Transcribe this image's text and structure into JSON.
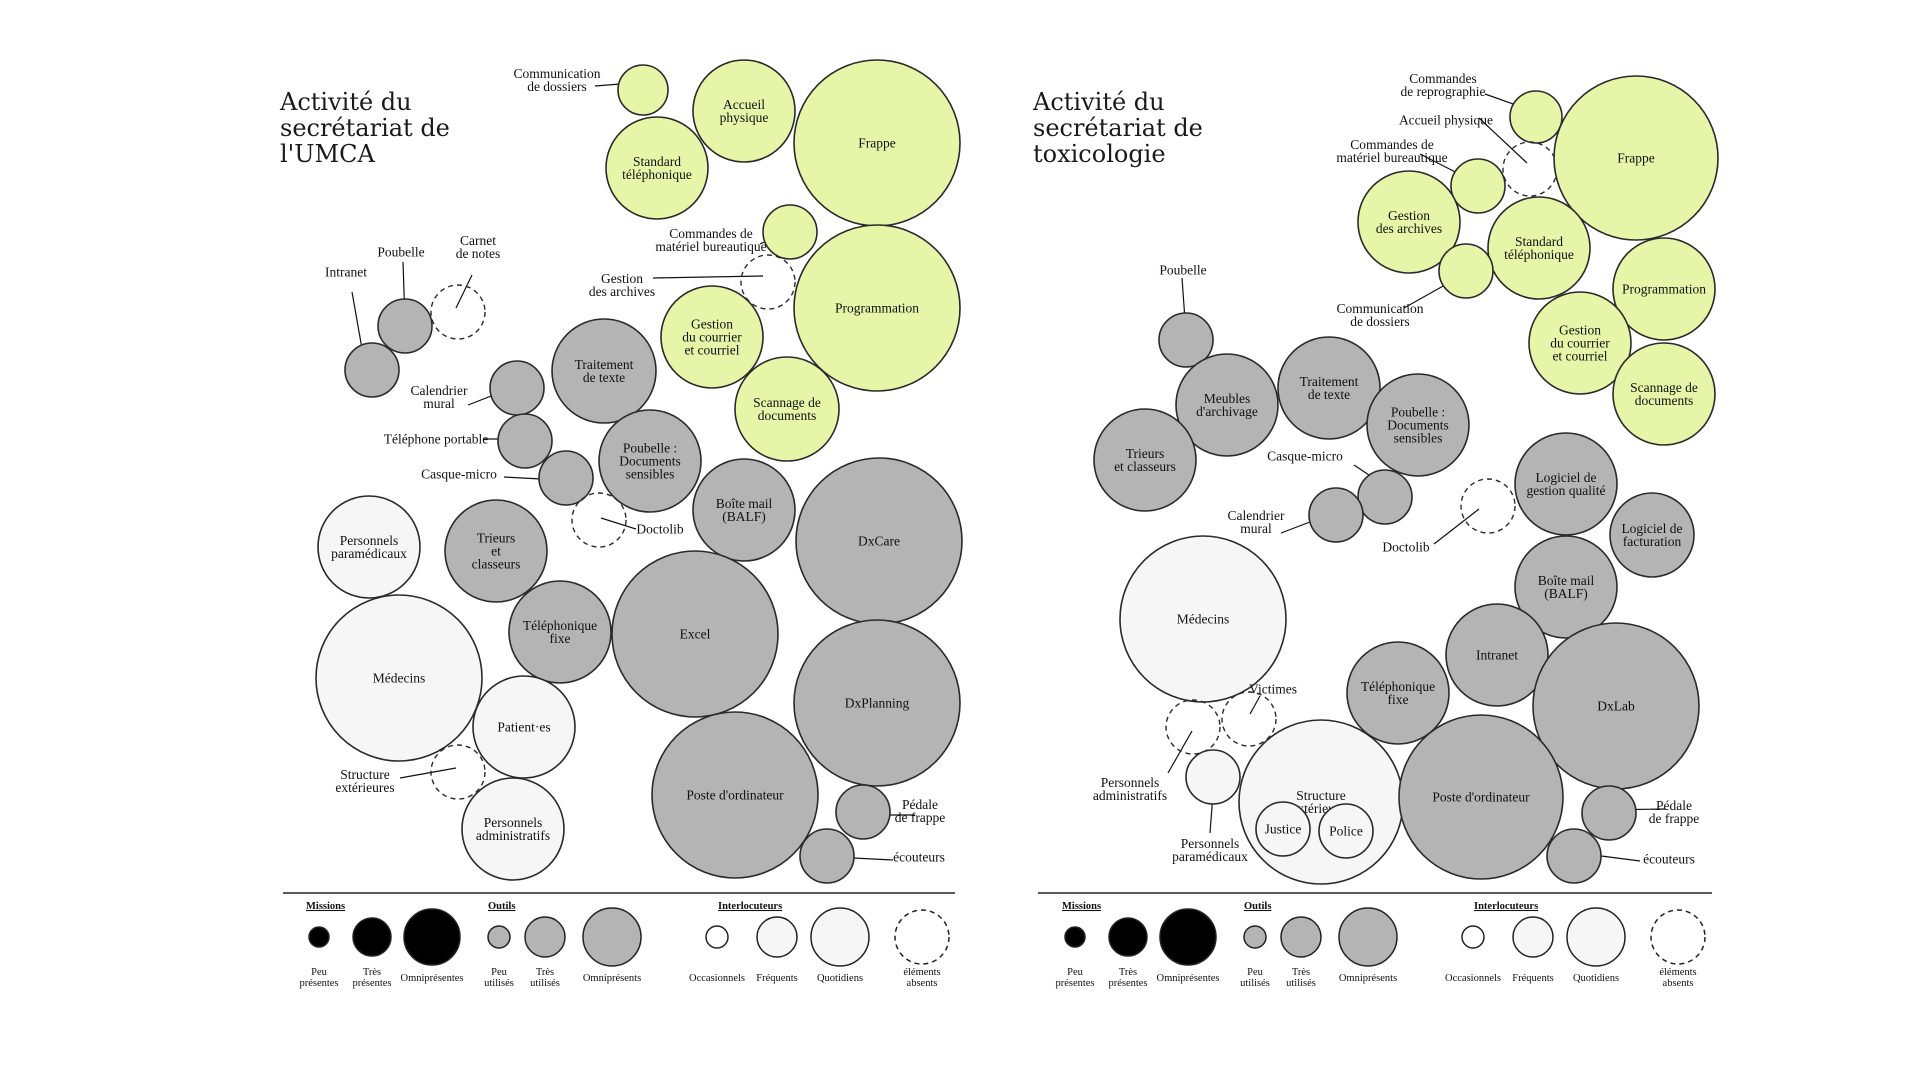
{
  "colors": {
    "mission": "#e6f5a8",
    "outil": "#b4b4b4",
    "interlocuteur": "#e8e8e8",
    "interlocuteur_light": "#f6f6f6",
    "stroke": "#2a2a2a"
  },
  "panels": [
    {
      "title": [
        "Activité du",
        "secrétariat de",
        "l'UMCA"
      ],
      "nodes": [
        {
          "label": "Communication\nde dossiers",
          "kind": "mission"
        },
        {
          "label": "Accueil\nphysique",
          "kind": "mission"
        },
        {
          "label": "Frappe",
          "kind": "mission"
        },
        {
          "label": "Standard\ntéléphonique",
          "kind": "mission"
        },
        {
          "label": "Commandes de\nmatériel bureautique",
          "kind": "mission"
        },
        {
          "label": "Gestion\ndes archives",
          "kind": "absent"
        },
        {
          "label": "Programmation",
          "kind": "mission"
        },
        {
          "label": "Gestion\ndu courrier\net courriel",
          "kind": "mission"
        },
        {
          "label": "Scannage de\ndocuments",
          "kind": "mission"
        },
        {
          "label": "Intranet",
          "kind": "outil"
        },
        {
          "label": "Poubelle",
          "kind": "outil"
        },
        {
          "label": "Carnet\nde notes",
          "kind": "absent"
        },
        {
          "label": "Traitement\nde texte",
          "kind": "outil"
        },
        {
          "label": "Calendrier\nmural",
          "kind": "outil"
        },
        {
          "label": "Téléphone portable",
          "kind": "outil"
        },
        {
          "label": "Casque-micro",
          "kind": "outil"
        },
        {
          "label": "Poubelle :\nDocuments\nsensibles",
          "kind": "outil"
        },
        {
          "label": "Doctolib",
          "kind": "absent"
        },
        {
          "label": "Boîte mail\n(BALF)",
          "kind": "outil"
        },
        {
          "label": "DxCare",
          "kind": "outil"
        },
        {
          "label": "Personnels\nparamédicaux",
          "kind": "interlocuteur"
        },
        {
          "label": "Trieurs\net\nclasseurs",
          "kind": "outil"
        },
        {
          "label": "Téléphonique\nfixe",
          "kind": "outil"
        },
        {
          "label": "Excel",
          "kind": "outil"
        },
        {
          "label": "Médecins",
          "kind": "interlocuteur"
        },
        {
          "label": "Patient·es",
          "kind": "interlocuteur"
        },
        {
          "label": "DxPlanning",
          "kind": "outil"
        },
        {
          "label": "Structure\nextérieures",
          "kind": "absent"
        },
        {
          "label": "Poste d'ordinateur",
          "kind": "outil"
        },
        {
          "label": "Personnels\nadministratifs",
          "kind": "interlocuteur"
        },
        {
          "label": "Pédale\nde frappe",
          "kind": "outil"
        },
        {
          "label": "écouteurs",
          "kind": "outil"
        }
      ]
    },
    {
      "title": [
        "Activité du",
        "secrétariat de",
        "toxicologie"
      ],
      "nodes": [
        {
          "label": "Commandes\nde reprographie",
          "kind": "mission"
        },
        {
          "label": "Accueil physique",
          "kind": "absent"
        },
        {
          "label": "Frappe",
          "kind": "mission"
        },
        {
          "label": "Commandes de\nmatériel bureautique",
          "kind": "mission"
        },
        {
          "label": "Gestion\ndes archives",
          "kind": "mission"
        },
        {
          "label": "Standard\ntéléphonique",
          "kind": "mission"
        },
        {
          "label": "Communication\nde dossiers",
          "kind": "mission"
        },
        {
          "label": "Programmation",
          "kind": "mission"
        },
        {
          "label": "Gestion\ndu courrier\net courriel",
          "kind": "mission"
        },
        {
          "label": "Scannage de\ndocuments",
          "kind": "mission"
        },
        {
          "label": "Poubelle",
          "kind": "outil"
        },
        {
          "label": "Meubles\nd'archivage",
          "kind": "outil"
        },
        {
          "label": "Traitement\nde texte",
          "kind": "outil"
        },
        {
          "label": "Trieurs\net classeurs",
          "kind": "outil"
        },
        {
          "label": "Poubelle :\nDocuments\nsensibles",
          "kind": "outil"
        },
        {
          "label": "Casque-micro",
          "kind": "outil"
        },
        {
          "label": "Calendrier\nmural",
          "kind": "outil"
        },
        {
          "label": "Doctolib",
          "kind": "absent"
        },
        {
          "label": "Logiciel de\ngestion qualité",
          "kind": "outil"
        },
        {
          "label": "Logiciel de\nfacturation",
          "kind": "outil"
        },
        {
          "label": "Médecins",
          "kind": "interlocuteur"
        },
        {
          "label": "Boîte mail\n(BALF)",
          "kind": "outil"
        },
        {
          "label": "Intranet",
          "kind": "outil"
        },
        {
          "label": "Victimes",
          "kind": "absent"
        },
        {
          "label": "Téléphonique\nfixe",
          "kind": "outil"
        },
        {
          "label": "DxLab",
          "kind": "outil"
        },
        {
          "label": "Personnels\nadministratifs",
          "kind": "absent"
        },
        {
          "label": "Structure\nextérieures",
          "kind": "interlocuteur"
        },
        {
          "label": "Justice",
          "kind": "interlocuteur"
        },
        {
          "label": "Police",
          "kind": "interlocuteur"
        },
        {
          "label": "Poste d'ordinateur",
          "kind": "outil"
        },
        {
          "label": "Personnels\nparamédicaux",
          "kind": "interlocuteur"
        },
        {
          "label": "Pédale\nde frappe",
          "kind": "outil"
        },
        {
          "label": "écouteurs",
          "kind": "outil"
        }
      ]
    }
  ],
  "legend": {
    "groups": [
      {
        "title": "Missions",
        "items": [
          "Peu\nprésentes",
          "Très\nprésentes",
          "Omniprésentes"
        ]
      },
      {
        "title": "Outils",
        "items": [
          "Peu\nutilisés",
          "Très\nutilisés",
          "Omniprésents"
        ]
      },
      {
        "title": "Interlocuteurs",
        "items": [
          "Occasionnels",
          "Fréquents",
          "Quotidiens"
        ]
      },
      {
        "title": "",
        "items": [
          "éléments\nabsents"
        ]
      }
    ]
  }
}
